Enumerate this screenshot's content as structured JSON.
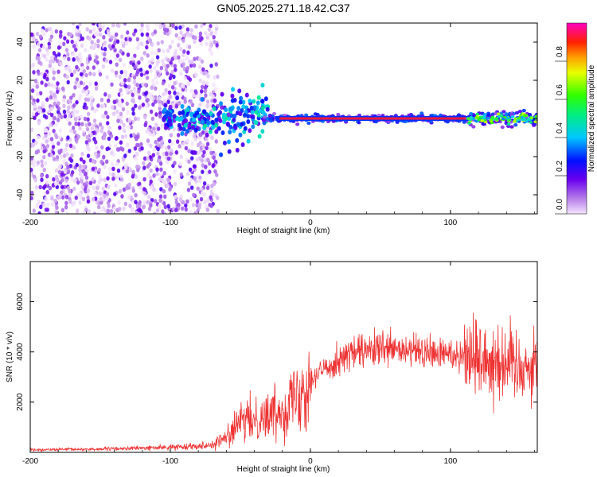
{
  "title": "GN05.2025.271.18.42.C37",
  "chart_data": [
    {
      "type": "heatmap",
      "xlabel": "Height of straight line (km)",
      "ylabel": "Frequency (Hz)",
      "xlim": [
        -200,
        162
      ],
      "ylim": [
        -50,
        50
      ],
      "xticks": [
        -200,
        -100,
        0,
        100
      ],
      "yticks": [
        -40,
        -20,
        0,
        20,
        40
      ],
      "colorbar": {
        "label": "Normalized spectral amplitude",
        "range": [
          0,
          1
        ],
        "ticks": [
          "0.0",
          "0.2",
          "0.4",
          "0.6",
          "0.8"
        ]
      },
      "regions": [
        {
          "x": [
            -200,
            -67
          ],
          "description": "noise",
          "level": 0.05
        },
        {
          "x": [
            -67,
            -30
          ],
          "description": "emerging signal",
          "level": 0.3
        },
        {
          "x": [
            -30,
            115
          ],
          "description": "carrier line at 0 Hz",
          "level": 1.0
        },
        {
          "x": [
            115,
            162
          ],
          "description": "fading carrier",
          "level": 0.5
        }
      ]
    },
    {
      "type": "line",
      "xlabel": "Height of straight line (km)",
      "ylabel": "SNR (10 * v/v)",
      "xlim": [
        -200,
        162
      ],
      "ylim": [
        0,
        7600
      ],
      "xticks": [
        -200,
        -100,
        0,
        100
      ],
      "yticks": [
        2000,
        4000,
        6000
      ],
      "series": [
        {
          "color": "#ee3333",
          "x": [
            -200,
            -150,
            -100,
            -70,
            -60,
            -50,
            -40,
            -30,
            -20,
            -10,
            0,
            10,
            20,
            30,
            40,
            50,
            60,
            70,
            80,
            90,
            100,
            110,
            120,
            130,
            140,
            150,
            160
          ],
          "y": [
            100,
            130,
            200,
            300,
            600,
            1200,
            1300,
            1500,
            1700,
            2300,
            2900,
            3300,
            3700,
            3950,
            4000,
            4100,
            4050,
            4000,
            4000,
            3900,
            3950,
            3900,
            3800,
            3700,
            3600,
            3500,
            3400
          ]
        }
      ]
    }
  ]
}
